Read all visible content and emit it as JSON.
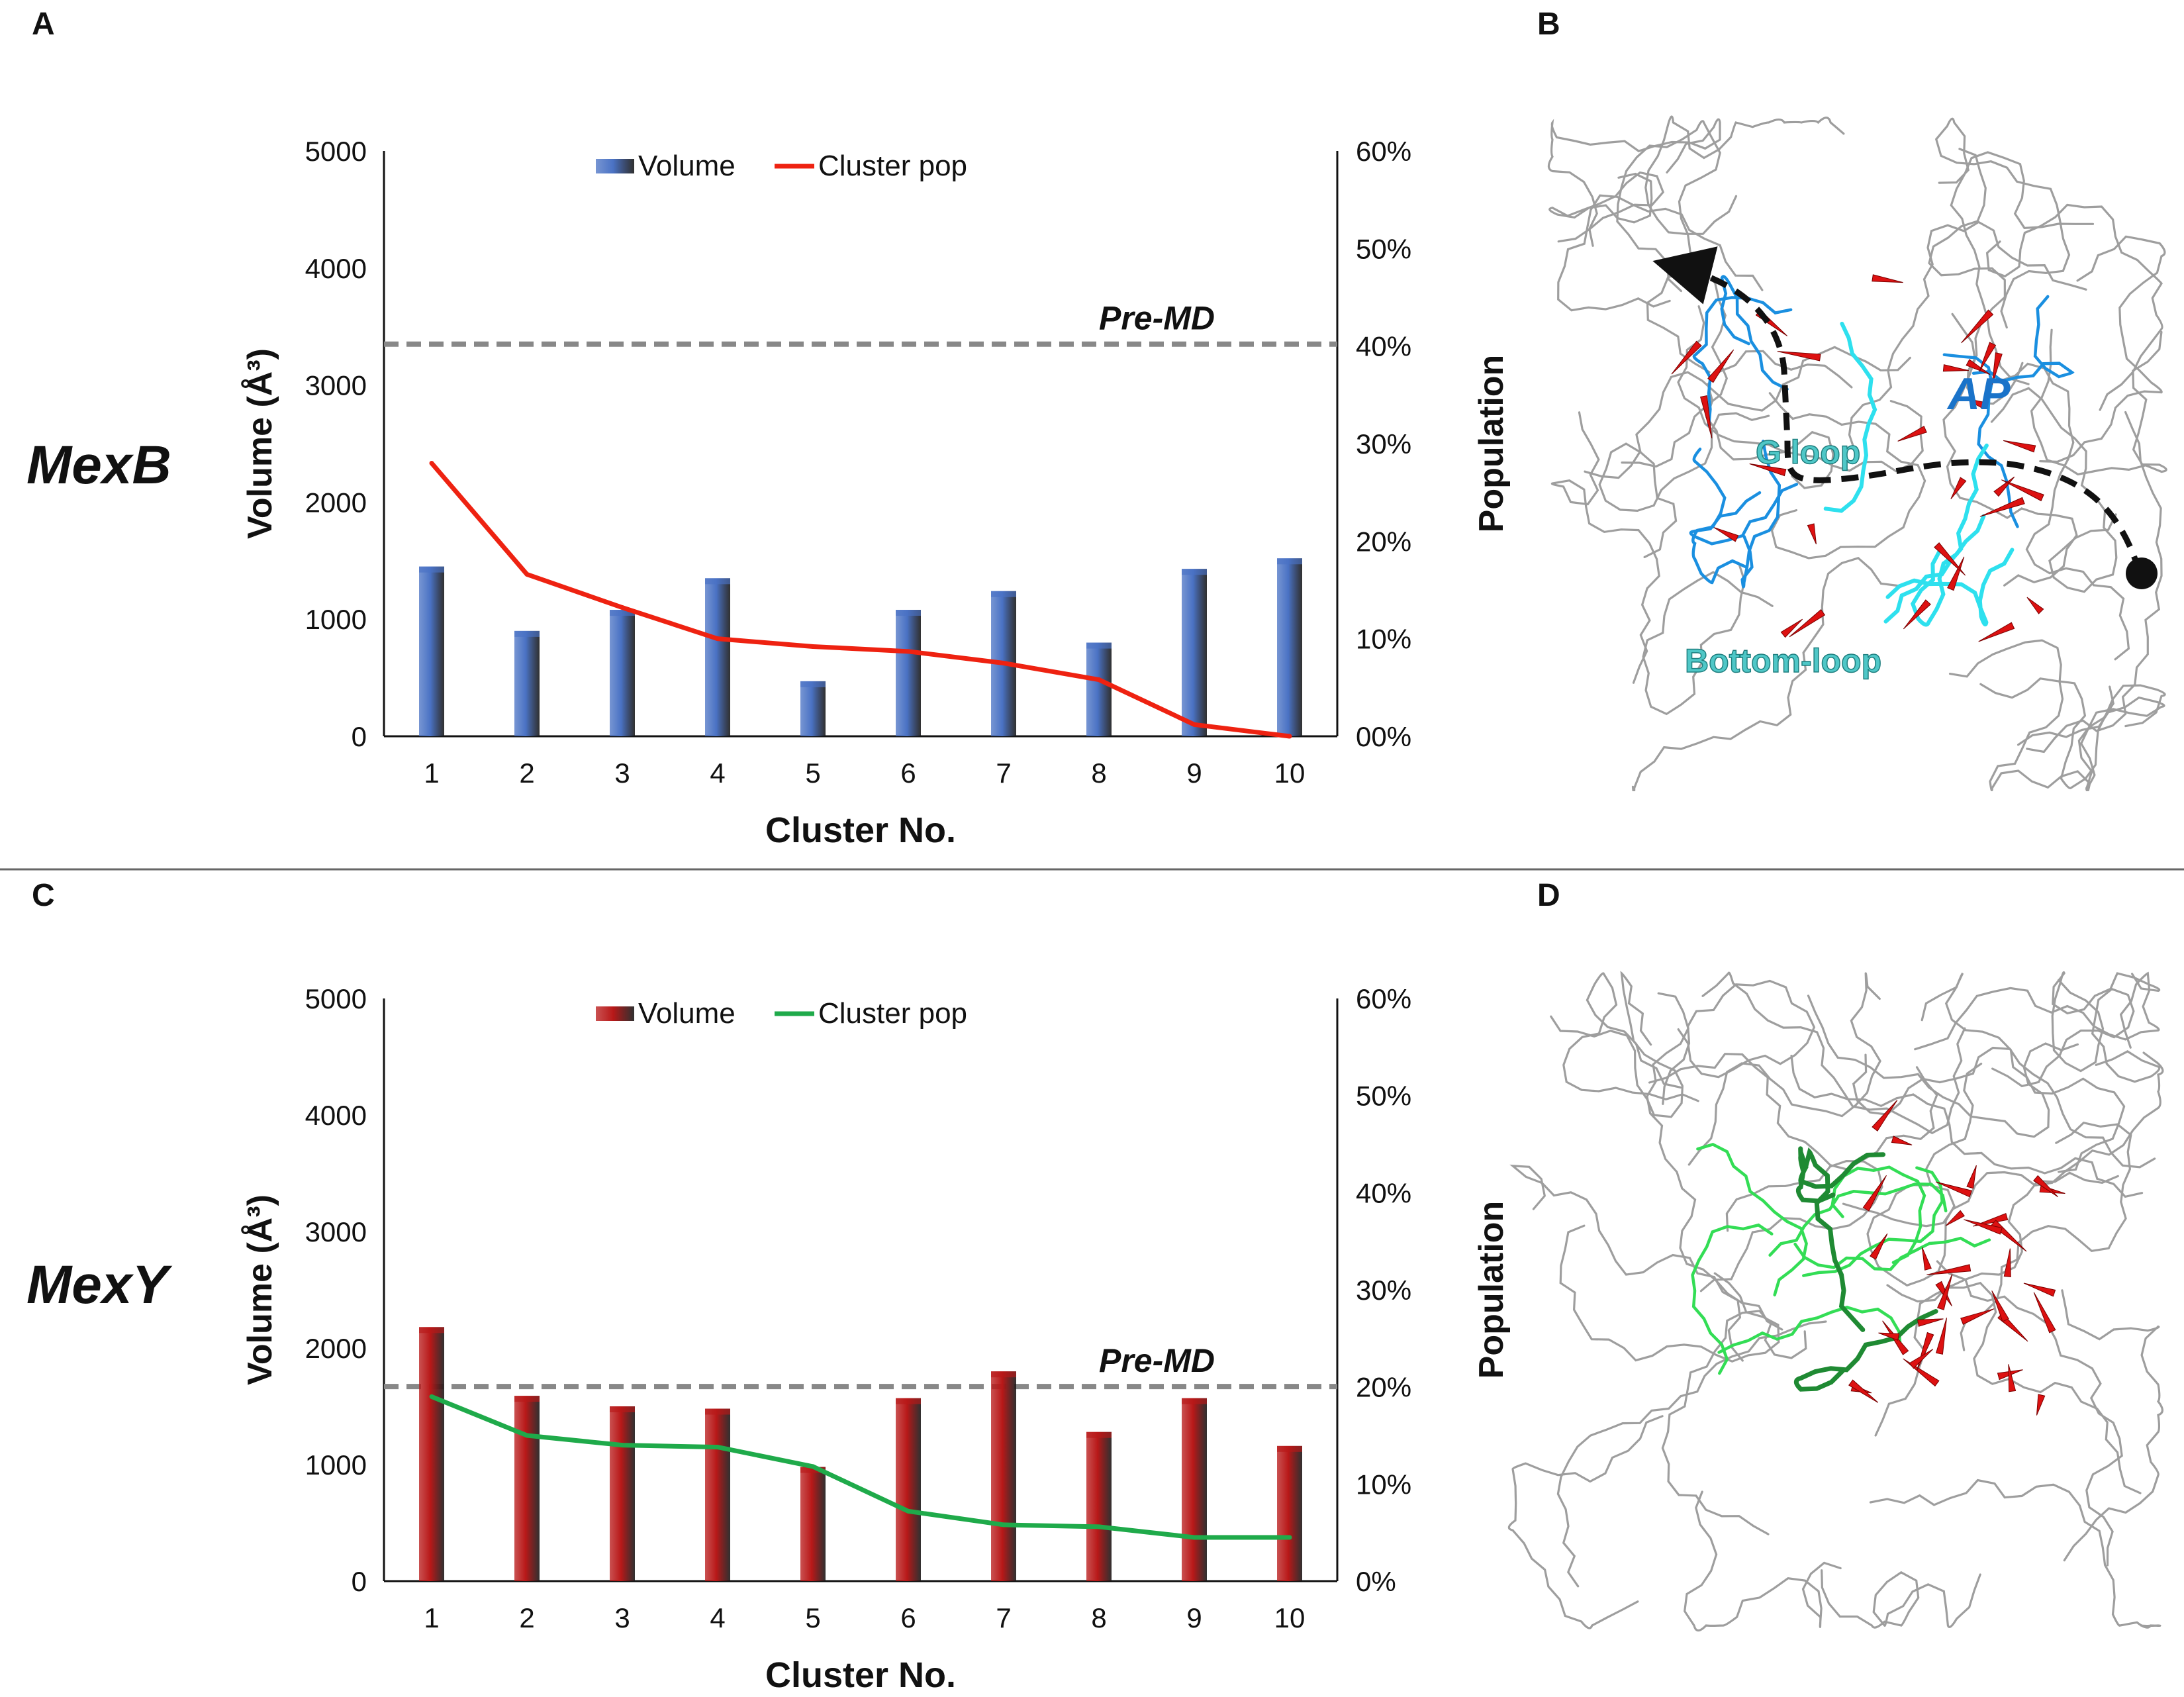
{
  "panel_labels": {
    "a": "A",
    "b": "B",
    "c": "C",
    "d": "D"
  },
  "colors": {
    "mexb_bar": "#4a72c4",
    "mexb_line": "#ee2211",
    "mexy_bar": "#b81818",
    "mexy_line": "#1faa4a",
    "reference_line": "#888888",
    "protein_trace": "#9e9e9e",
    "loop_blue": "#1a8fe0",
    "loop_cyan": "#2ee0ee",
    "ap_label": "#1a73c9",
    "loop_label": "#4fc7c7",
    "green_loop": "#33dd55",
    "arrow_red": "#dd1111"
  },
  "chart_data": [
    {
      "type": "bar+line",
      "protein": "MexB",
      "categories": [
        "1",
        "2",
        "3",
        "4",
        "5",
        "6",
        "7",
        "8",
        "9",
        "10"
      ],
      "series": [
        {
          "name": "Volume",
          "axis": "left",
          "kind": "bar",
          "values": [
            1450,
            900,
            1080,
            1350,
            470,
            1080,
            1240,
            800,
            1430,
            1520
          ]
        },
        {
          "name": "Cluster pop",
          "axis": "right",
          "kind": "line",
          "values": [
            28,
            16.6,
            13.2,
            10,
            9.2,
            8.7,
            7.5,
            5.8,
            1.2,
            0
          ]
        }
      ],
      "reference_line": {
        "label": "Pre-MD",
        "value": 3350
      },
      "xlabel": "Cluster No.",
      "ylabel": "Volume (Å³)",
      "y2label": "Population",
      "ylim": [
        0,
        5000
      ],
      "yticks": [
        "0",
        "1000",
        "2000",
        "3000",
        "4000",
        "5000"
      ],
      "y2lim": [
        0,
        60
      ],
      "y2ticks": [
        "00%",
        "10%",
        "20%",
        "30%",
        "40%",
        "50%",
        "60%"
      ]
    },
    {
      "type": "bar+line",
      "protein": "MexY",
      "categories": [
        "1",
        "2",
        "3",
        "4",
        "5",
        "6",
        "7",
        "8",
        "9",
        "10"
      ],
      "series": [
        {
          "name": "Volume",
          "axis": "left",
          "kind": "bar",
          "values": [
            2180,
            1590,
            1500,
            1480,
            980,
            1570,
            1800,
            1280,
            1570,
            1160
          ]
        },
        {
          "name": "Cluster pop",
          "axis": "right",
          "kind": "line",
          "values": [
            19,
            15,
            14,
            13.8,
            11.8,
            7.2,
            5.8,
            5.6,
            4.5,
            4.5
          ]
        }
      ],
      "reference_line": {
        "label": "Pre-MD",
        "value": 1670
      },
      "xlabel": "Cluster No.",
      "ylabel": "Volume (Å³)",
      "y2label": "Population",
      "ylim": [
        0,
        5000
      ],
      "yticks": [
        "0",
        "1000",
        "2000",
        "3000",
        "4000",
        "5000"
      ],
      "y2lim": [
        0,
        60
      ],
      "y2ticks": [
        "0%",
        "10%",
        "20%",
        "30%",
        "40%",
        "50%",
        "60%"
      ]
    }
  ],
  "structure_b": {
    "labels": {
      "ap": "AP",
      "gloop": "G loop",
      "bottom_loop": "Bottom-loop"
    }
  },
  "structure_d": {}
}
